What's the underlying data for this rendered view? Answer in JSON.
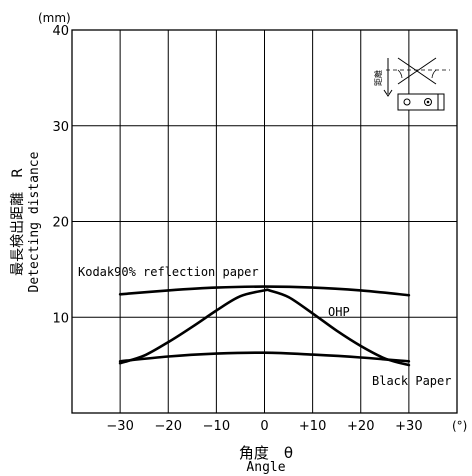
{
  "chart_data": {
    "type": "line",
    "xlabel": "角度　θ",
    "xlabel_en": "Angle",
    "ylabel": "最長検出距離　R",
    "ylabel_en": "Detecting distance",
    "x_unit": "(°)",
    "y_unit": "(mm)",
    "xlim": [
      -40,
      40
    ],
    "ylim": [
      0,
      40
    ],
    "x_ticks": [
      -30,
      -20,
      -10,
      0,
      10,
      20,
      30
    ],
    "x_tick_labels": [
      "−30",
      "−20",
      "−10",
      "0",
      "+10",
      "+20",
      "+30"
    ],
    "y_ticks": [
      10,
      20,
      30,
      40
    ],
    "y_tick_labels": [
      "10",
      "20",
      "30",
      "40"
    ],
    "grid": true,
    "series": [
      {
        "name": "Kodak90% reflection paper",
        "x": [
          -30,
          -20,
          -10,
          0,
          10,
          20,
          30
        ],
        "y": [
          12.4,
          12.8,
          13.1,
          13.2,
          13.1,
          12.8,
          12.3
        ]
      },
      {
        "name": "OHP",
        "x": [
          -30,
          -25,
          -20,
          -15,
          -10,
          -5,
          0,
          1,
          5,
          10,
          15,
          20,
          25,
          30
        ],
        "y": [
          5.2,
          6.0,
          7.4,
          9.0,
          10.7,
          12.2,
          12.8,
          12.8,
          12.1,
          10.4,
          8.6,
          7.0,
          5.7,
          5.0
        ]
      },
      {
        "name": "Black Paper",
        "x": [
          -30,
          -20,
          -10,
          0,
          10,
          20,
          30
        ],
        "y": [
          5.4,
          5.9,
          6.2,
          6.3,
          6.1,
          5.8,
          5.4
        ]
      }
    ]
  },
  "inset": {
    "label": "距離"
  }
}
